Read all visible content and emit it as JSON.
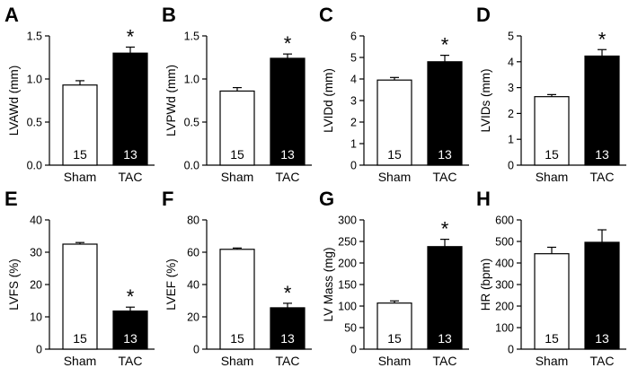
{
  "chart_data": [
    {
      "panel": "A",
      "type": "bar",
      "ylabel": "LVAWd (mm)",
      "ylim": [
        0,
        1.5
      ],
      "yticks": [
        "0.0",
        "0.5",
        "1.0",
        "1.5"
      ],
      "ytick_values": [
        0,
        0.5,
        1.0,
        1.5
      ],
      "categories": [
        "Sham",
        "TAC"
      ],
      "values": [
        0.93,
        1.3
      ],
      "errors": [
        0.05,
        0.07
      ],
      "n_labels": [
        "15",
        "13"
      ],
      "fill_colors": [
        "#ffffff",
        "#000000"
      ],
      "significance": [
        "",
        "*"
      ]
    },
    {
      "panel": "B",
      "type": "bar",
      "ylabel": "LVPWd (mm)",
      "ylim": [
        0,
        1.5
      ],
      "yticks": [
        "0.0",
        "0.5",
        "1.0",
        "1.5"
      ],
      "ytick_values": [
        0,
        0.5,
        1.0,
        1.5
      ],
      "categories": [
        "Sham",
        "TAC"
      ],
      "values": [
        0.86,
        1.24
      ],
      "errors": [
        0.04,
        0.05
      ],
      "n_labels": [
        "15",
        "13"
      ],
      "fill_colors": [
        "#ffffff",
        "#000000"
      ],
      "significance": [
        "",
        "*"
      ]
    },
    {
      "panel": "C",
      "type": "bar",
      "ylabel": "LVIDd (mm)",
      "ylim": [
        0,
        6
      ],
      "yticks": [
        "0",
        "1",
        "2",
        "3",
        "4",
        "5",
        "6"
      ],
      "ytick_values": [
        0,
        1,
        2,
        3,
        4,
        5,
        6
      ],
      "categories": [
        "Sham",
        "TAC"
      ],
      "values": [
        3.95,
        4.8
      ],
      "errors": [
        0.12,
        0.3
      ],
      "n_labels": [
        "15",
        "13"
      ],
      "fill_colors": [
        "#ffffff",
        "#000000"
      ],
      "significance": [
        "",
        "*"
      ]
    },
    {
      "panel": "D",
      "type": "bar",
      "ylabel": "LVIDs (mm)",
      "ylim": [
        0,
        5
      ],
      "yticks": [
        "0",
        "1",
        "2",
        "3",
        "4",
        "5"
      ],
      "ytick_values": [
        0,
        1,
        2,
        3,
        4,
        5
      ],
      "categories": [
        "Sham",
        "TAC"
      ],
      "values": [
        2.65,
        4.22
      ],
      "errors": [
        0.08,
        0.25
      ],
      "n_labels": [
        "15",
        "13"
      ],
      "fill_colors": [
        "#ffffff",
        "#000000"
      ],
      "significance": [
        "",
        "*"
      ]
    },
    {
      "panel": "E",
      "type": "bar",
      "ylabel": "LVFS (%)",
      "ylim": [
        0,
        40
      ],
      "yticks": [
        "0",
        "10",
        "20",
        "30",
        "40"
      ],
      "ytick_values": [
        0,
        10,
        20,
        30,
        40
      ],
      "categories": [
        "Sham",
        "TAC"
      ],
      "values": [
        32.5,
        11.8
      ],
      "errors": [
        0.5,
        1.2
      ],
      "n_labels": [
        "15",
        "13"
      ],
      "fill_colors": [
        "#ffffff",
        "#000000"
      ],
      "significance": [
        "",
        "*"
      ]
    },
    {
      "panel": "F",
      "type": "bar",
      "ylabel": "LVEF (%)",
      "ylim": [
        0,
        80
      ],
      "yticks": [
        "0",
        "20",
        "40",
        "60",
        "80"
      ],
      "ytick_values": [
        0,
        20,
        40,
        60,
        80
      ],
      "categories": [
        "Sham",
        "TAC"
      ],
      "values": [
        61.8,
        25.6
      ],
      "errors": [
        0.8,
        2.8
      ],
      "n_labels": [
        "15",
        "13"
      ],
      "fill_colors": [
        "#ffffff",
        "#000000"
      ],
      "significance": [
        "",
        "*"
      ]
    },
    {
      "panel": "G",
      "type": "bar",
      "ylabel": "LV Mass (mg)",
      "ylim": [
        0,
        300
      ],
      "yticks": [
        "0",
        "50",
        "100",
        "150",
        "200",
        "250",
        "300"
      ],
      "ytick_values": [
        0,
        50,
        100,
        150,
        200,
        250,
        300
      ],
      "categories": [
        "Sham",
        "TAC"
      ],
      "values": [
        107,
        238
      ],
      "errors": [
        5,
        17
      ],
      "n_labels": [
        "15",
        "13"
      ],
      "fill_colors": [
        "#ffffff",
        "#000000"
      ],
      "significance": [
        "",
        "*"
      ]
    },
    {
      "panel": "H",
      "type": "bar",
      "ylabel": "HR (bpm)",
      "ylim": [
        0,
        600
      ],
      "yticks": [
        "0",
        "100",
        "200",
        "300",
        "400",
        "500",
        "600"
      ],
      "ytick_values": [
        0,
        100,
        200,
        300,
        400,
        500,
        600
      ],
      "categories": [
        "Sham",
        "TAC"
      ],
      "values": [
        443,
        496
      ],
      "errors": [
        30,
        58
      ],
      "n_labels": [
        "15",
        "13"
      ],
      "fill_colors": [
        "#ffffff",
        "#000000"
      ],
      "significance": [
        "",
        ""
      ]
    }
  ]
}
